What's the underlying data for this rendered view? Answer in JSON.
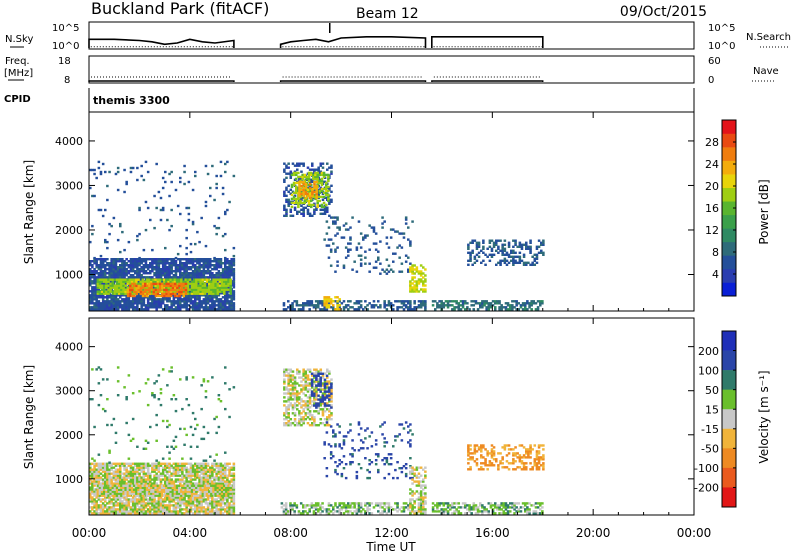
{
  "header": {
    "title": "Buckland Park (fitACF)",
    "beam": "Beam 12",
    "date": "09/Oct/2015"
  },
  "labels": {
    "nsky": "N.Sky",
    "nsearch": "N.Search",
    "freq_line1": "Freq.",
    "freq_line2": "[MHz]",
    "nave": "Nave",
    "cpid": "CPID",
    "cpid_value": "themis 3300",
    "slant_range": "Slant Range [km]",
    "power_label": "Power [dB]",
    "velocity_label": "Velocity [m s⁻¹]"
  },
  "chart_data": [
    {
      "name": "noise",
      "type": "line",
      "left_axis": {
        "label": "N.Sky",
        "ticks": [
          "10^5",
          "10^0"
        ]
      },
      "right_axis": {
        "label": "N.Search",
        "ticks": [
          "10^5",
          "10^0"
        ]
      },
      "segments": [
        [
          0.0,
          5.75
        ],
        [
          7.6,
          13.35
        ],
        [
          13.6,
          18.0
        ]
      ],
      "series": [
        {
          "name": "N.Sky",
          "style": "solid",
          "x": [
            0.0,
            1.0,
            2.0,
            2.5,
            3.0,
            3.5,
            4.0,
            4.5,
            5.0,
            5.75,
            7.6,
            8.0,
            8.5,
            9.0,
            9.5,
            10.0,
            11.0,
            12.0,
            13.35,
            13.6,
            15.0,
            16.0,
            17.0,
            18.0
          ],
          "y": [
            0.35,
            0.35,
            0.3,
            0.25,
            0.15,
            0.2,
            0.35,
            0.25,
            0.2,
            0.3,
            0.15,
            0.25,
            0.3,
            0.35,
            0.25,
            0.4,
            0.45,
            0.45,
            0.4,
            0.45,
            0.45,
            0.45,
            0.45,
            0.45
          ]
        },
        {
          "name": "N.Search",
          "style": "dotted",
          "x": [
            0.0,
            5.75,
            7.6,
            13.35,
            13.6,
            18.0
          ],
          "y": [
            0.05,
            0.05,
            0.05,
            0.05,
            0.05,
            0.05
          ]
        }
      ]
    },
    {
      "name": "frequency",
      "type": "line",
      "left_axis": {
        "label": "Freq. [MHz]",
        "ticks": [
          18,
          8
        ],
        "range": [
          8,
          18
        ]
      },
      "right_axis": {
        "label": "Nave",
        "ticks": [
          60,
          0
        ],
        "range": [
          0,
          60
        ]
      },
      "segments": [
        [
          0.0,
          5.75
        ],
        [
          7.6,
          13.35
        ],
        [
          13.6,
          18.0
        ]
      ],
      "series": [
        {
          "name": "Freq.",
          "style": "solid",
          "value": 8.4
        },
        {
          "name": "Nave",
          "style": "dotted",
          "value": 12
        }
      ]
    },
    {
      "name": "power",
      "type": "heatmap",
      "ylabel": "Slant Range [km]",
      "ylim": [
        180,
        4650
      ],
      "yticks": [
        1000,
        2000,
        3000,
        4000
      ],
      "colorbar": {
        "label": "Power [dB]",
        "ticks": [
          4,
          8,
          12,
          16,
          20,
          24,
          28
        ],
        "range": [
          0,
          32
        ]
      },
      "regions": [
        {
          "t": [
            0.0,
            5.75
          ],
          "r": [
            200,
            1350
          ],
          "v": 6,
          "density": 0.85
        },
        {
          "t": [
            0.3,
            5.6
          ],
          "r": [
            550,
            900
          ],
          "v": 18,
          "density": 0.9
        },
        {
          "t": [
            1.5,
            3.8
          ],
          "r": [
            500,
            780
          ],
          "v": 26,
          "density": 0.7
        },
        {
          "t": [
            0.0,
            5.75
          ],
          "r": [
            1350,
            3550
          ],
          "v": 7,
          "density": 0.05
        },
        {
          "t": [
            7.6,
            13.35
          ],
          "r": [
            200,
            400
          ],
          "v": 7,
          "density": 0.55
        },
        {
          "t": [
            13.6,
            18.0
          ],
          "r": [
            200,
            400
          ],
          "v": 9,
          "density": 0.6
        },
        {
          "t": [
            7.7,
            9.6
          ],
          "r": [
            2300,
            3500
          ],
          "v": 6,
          "density": 0.4
        },
        {
          "t": [
            8.0,
            9.5
          ],
          "r": [
            2500,
            3300
          ],
          "v": 18,
          "density": 0.5
        },
        {
          "t": [
            8.3,
            9.0
          ],
          "r": [
            2700,
            3100
          ],
          "v": 24,
          "density": 0.6
        },
        {
          "t": [
            9.3,
            12.8
          ],
          "r": [
            1000,
            2300
          ],
          "v": 7,
          "density": 0.12
        },
        {
          "t": [
            12.7,
            13.3
          ],
          "r": [
            600,
            1200
          ],
          "v": 20,
          "density": 0.6
        },
        {
          "t": [
            15.0,
            18.0
          ],
          "r": [
            1200,
            1750
          ],
          "v": 7,
          "density": 0.35
        },
        {
          "t": [
            9.3,
            9.9
          ],
          "r": [
            200,
            500
          ],
          "v": 22,
          "density": 0.6
        }
      ]
    },
    {
      "name": "velocity",
      "type": "heatmap",
      "ylabel": "Slant Range [km]",
      "ylim": [
        180,
        4650
      ],
      "yticks": [
        1000,
        2000,
        3000,
        4000
      ],
      "xlabel": "Time UT",
      "xticks": [
        "00:00",
        "04:00",
        "08:00",
        "12:00",
        "16:00",
        "20:00",
        "00:00"
      ],
      "xlim": [
        0,
        24
      ],
      "colorbar": {
        "label": "Velocity [m s⁻¹]",
        "ticks": [
          200,
          100,
          50,
          15,
          -15,
          -50,
          -100,
          -200
        ]
      },
      "regions": [
        {
          "t": [
            0.0,
            5.75
          ],
          "r": [
            200,
            1350
          ],
          "v": 0,
          "density": 0.85
        },
        {
          "t": [
            0.3,
            5.6
          ],
          "r": [
            600,
            850
          ],
          "v": 0,
          "density": 0.95
        },
        {
          "t": [
            0.0,
            5.75
          ],
          "r": [
            1350,
            3550
          ],
          "v": 60,
          "density": 0.05
        },
        {
          "t": [
            7.6,
            13.35
          ],
          "r": [
            200,
            450
          ],
          "v": 30,
          "density": 0.55
        },
        {
          "t": [
            13.6,
            18.0
          ],
          "r": [
            200,
            450
          ],
          "v": 30,
          "density": 0.6
        },
        {
          "t": [
            7.7,
            9.6
          ],
          "r": [
            2200,
            3500
          ],
          "v": 0,
          "density": 0.55
        },
        {
          "t": [
            8.8,
            9.6
          ],
          "r": [
            2600,
            3400
          ],
          "v": 150,
          "density": 0.4
        },
        {
          "t": [
            9.3,
            12.8
          ],
          "r": [
            1000,
            2300
          ],
          "v": 120,
          "density": 0.12
        },
        {
          "t": [
            12.7,
            13.3
          ],
          "r": [
            200,
            1250
          ],
          "v": 0,
          "density": 0.6
        },
        {
          "t": [
            15.0,
            18.0
          ],
          "r": [
            1200,
            1750
          ],
          "v": -60,
          "density": 0.4
        }
      ]
    }
  ]
}
